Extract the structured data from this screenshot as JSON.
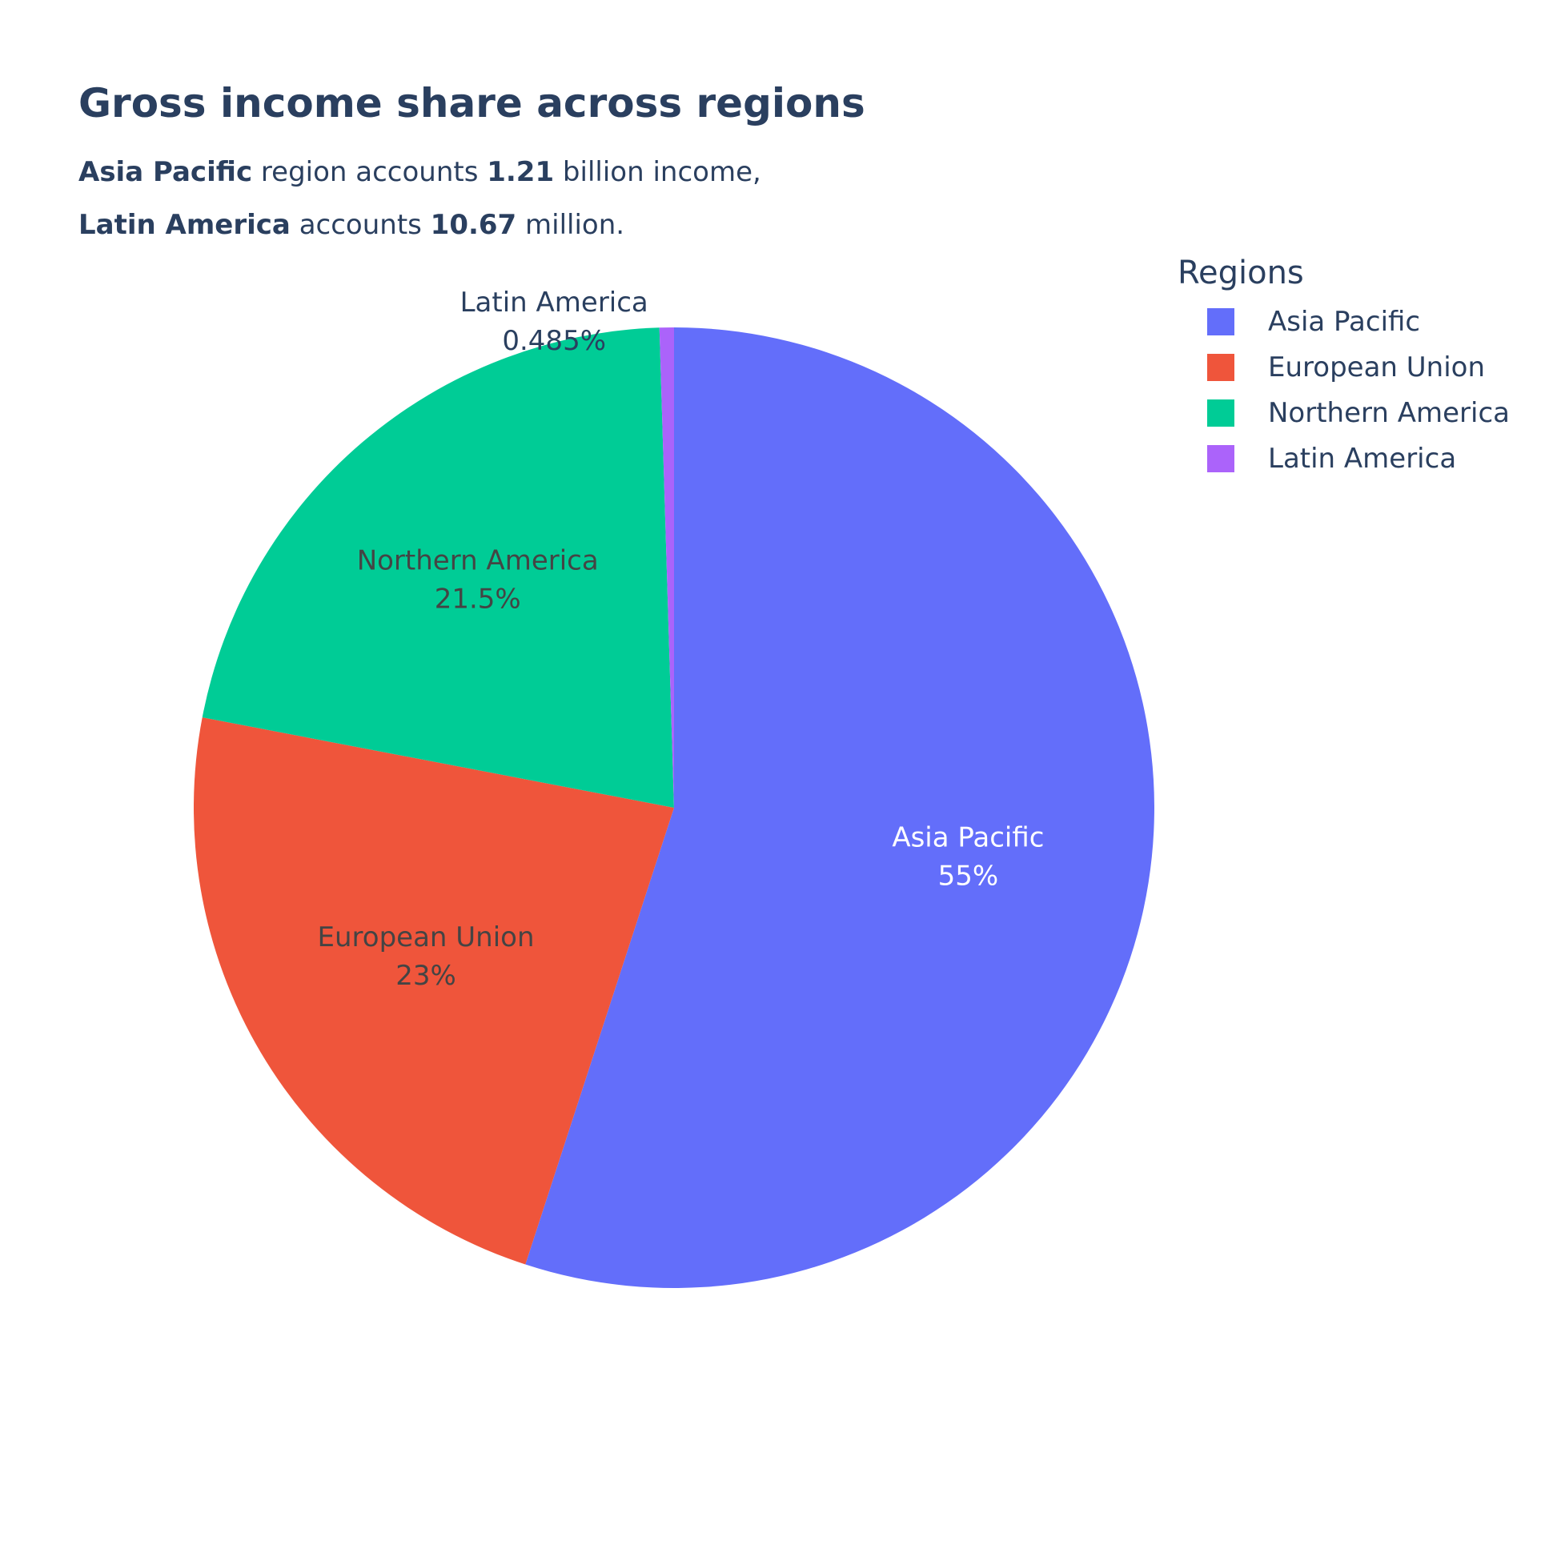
{
  "chart_data": {
    "type": "pie",
    "title": "Gross income share across regions",
    "subtitle": {
      "line1": {
        "bold1": "Asia Pacific",
        "text1": " region accounts ",
        "bold2": "1.21",
        "text2": " billion income,"
      },
      "line2": {
        "bold1": "Latin America",
        "text1": " accounts ",
        "bold2": "10.67",
        "text2": " million."
      }
    },
    "legend_title": "Regions",
    "legend_position": "top-right",
    "categories": [
      "Asia Pacific",
      "European Union",
      "Northern America",
      "Latin America"
    ],
    "values": [
      55.0,
      23.0,
      21.5,
      0.485
    ],
    "percent_labels": [
      "55%",
      "23%",
      "21.5%",
      "0.485%"
    ],
    "colors": [
      "#636efa",
      "#ef553b",
      "#00cc96",
      "#ab63fa"
    ],
    "direction": "clockwise",
    "start_angle": "top"
  }
}
